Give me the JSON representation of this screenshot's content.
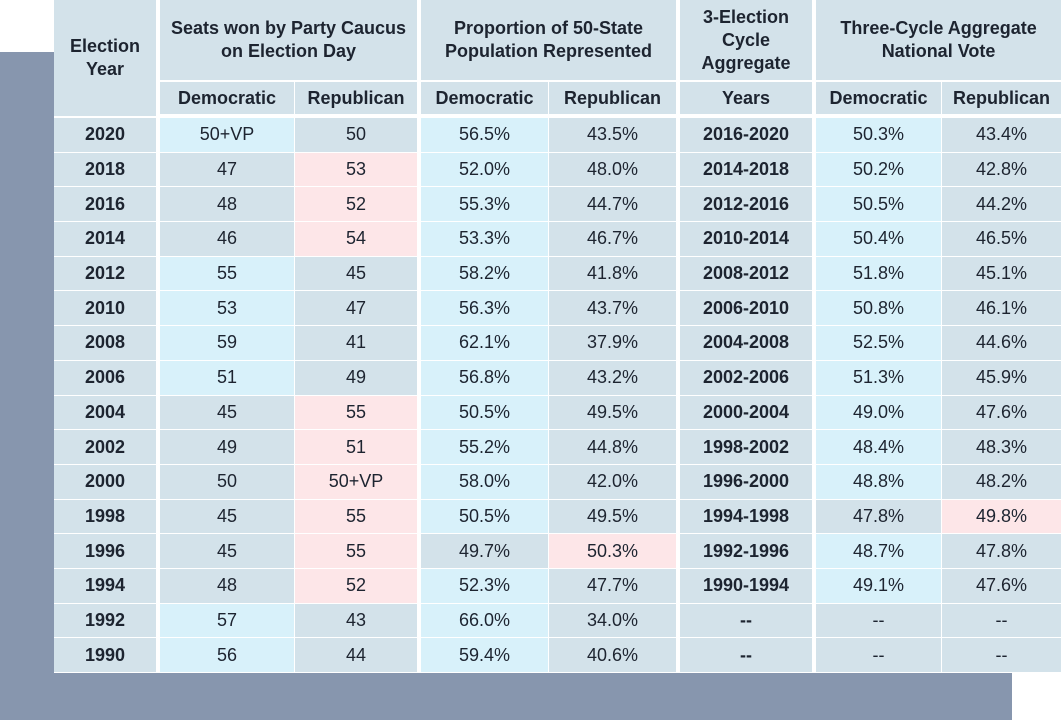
{
  "headers": {
    "year": "Election Year",
    "seats": "Seats won by Party Caucus on Election Day",
    "population": "Proportion of 50-State Population Represented",
    "cycle": "3-Election Cycle Aggregate",
    "national": "Three-Cycle Aggregate National Vote",
    "dem": "Democratic",
    "rep": "Republican",
    "years": "Years"
  },
  "colors": {
    "header_bg": "#d3e2ea",
    "dem_highlight": "#d8f1fa",
    "rep_highlight": "#fde6e8",
    "neutral": "#d3e2ea",
    "backdrop": "#8796ae"
  },
  "rows": [
    {
      "year": "2020",
      "seats_d": "50+VP",
      "seats_r": "50",
      "pop_d": "56.5%",
      "pop_r": "43.5%",
      "range": "2016-2020",
      "nat_d": "50.3%",
      "nat_r": "43.4%",
      "s": "d",
      "p": "d",
      "n": "d"
    },
    {
      "year": "2018",
      "seats_d": "47",
      "seats_r": "53",
      "pop_d": "52.0%",
      "pop_r": "48.0%",
      "range": "2014-2018",
      "nat_d": "50.2%",
      "nat_r": "42.8%",
      "s": "r",
      "p": "d",
      "n": "d"
    },
    {
      "year": "2016",
      "seats_d": "48",
      "seats_r": "52",
      "pop_d": "55.3%",
      "pop_r": "44.7%",
      "range": "2012-2016",
      "nat_d": "50.5%",
      "nat_r": "44.2%",
      "s": "r",
      "p": "d",
      "n": "d"
    },
    {
      "year": "2014",
      "seats_d": "46",
      "seats_r": "54",
      "pop_d": "53.3%",
      "pop_r": "46.7%",
      "range": "2010-2014",
      "nat_d": "50.4%",
      "nat_r": "46.5%",
      "s": "r",
      "p": "d",
      "n": "d"
    },
    {
      "year": "2012",
      "seats_d": "55",
      "seats_r": "45",
      "pop_d": "58.2%",
      "pop_r": "41.8%",
      "range": "2008-2012",
      "nat_d": "51.8%",
      "nat_r": "45.1%",
      "s": "d",
      "p": "d",
      "n": "d"
    },
    {
      "year": "2010",
      "seats_d": "53",
      "seats_r": "47",
      "pop_d": "56.3%",
      "pop_r": "43.7%",
      "range": "2006-2010",
      "nat_d": "50.8%",
      "nat_r": "46.1%",
      "s": "d",
      "p": "d",
      "n": "d"
    },
    {
      "year": "2008",
      "seats_d": "59",
      "seats_r": "41",
      "pop_d": "62.1%",
      "pop_r": "37.9%",
      "range": "2004-2008",
      "nat_d": "52.5%",
      "nat_r": "44.6%",
      "s": "d",
      "p": "d",
      "n": "d"
    },
    {
      "year": "2006",
      "seats_d": "51",
      "seats_r": "49",
      "pop_d": "56.8%",
      "pop_r": "43.2%",
      "range": "2002-2006",
      "nat_d": "51.3%",
      "nat_r": "45.9%",
      "s": "d",
      "p": "d",
      "n": "d"
    },
    {
      "year": "2004",
      "seats_d": "45",
      "seats_r": "55",
      "pop_d": "50.5%",
      "pop_r": "49.5%",
      "range": "2000-2004",
      "nat_d": "49.0%",
      "nat_r": "47.6%",
      "s": "r",
      "p": "d",
      "n": "d"
    },
    {
      "year": "2002",
      "seats_d": "49",
      "seats_r": "51",
      "pop_d": "55.2%",
      "pop_r": "44.8%",
      "range": "1998-2002",
      "nat_d": "48.4%",
      "nat_r": "48.3%",
      "s": "r",
      "p": "d",
      "n": "d"
    },
    {
      "year": "2000",
      "seats_d": "50",
      "seats_r": "50+VP",
      "pop_d": "58.0%",
      "pop_r": "42.0%",
      "range": "1996-2000",
      "nat_d": "48.8%",
      "nat_r": "48.2%",
      "s": "r",
      "p": "d",
      "n": "d"
    },
    {
      "year": "1998",
      "seats_d": "45",
      "seats_r": "55",
      "pop_d": "50.5%",
      "pop_r": "49.5%",
      "range": "1994-1998",
      "nat_d": "47.8%",
      "nat_r": "49.8%",
      "s": "r",
      "p": "d",
      "n": "r"
    },
    {
      "year": "1996",
      "seats_d": "45",
      "seats_r": "55",
      "pop_d": "49.7%",
      "pop_r": "50.3%",
      "range": "1992-1996",
      "nat_d": "48.7%",
      "nat_r": "47.8%",
      "s": "r",
      "p": "r",
      "n": "d"
    },
    {
      "year": "1994",
      "seats_d": "48",
      "seats_r": "52",
      "pop_d": "52.3%",
      "pop_r": "47.7%",
      "range": "1990-1994",
      "nat_d": "49.1%",
      "nat_r": "47.6%",
      "s": "r",
      "p": "d",
      "n": "d"
    },
    {
      "year": "1992",
      "seats_d": "57",
      "seats_r": "43",
      "pop_d": "66.0%",
      "pop_r": "34.0%",
      "range": "--",
      "nat_d": "--",
      "nat_r": "--",
      "s": "d",
      "p": "d",
      "n": "none"
    },
    {
      "year": "1990",
      "seats_d": "56",
      "seats_r": "44",
      "pop_d": "59.4%",
      "pop_r": "40.6%",
      "range": "--",
      "nat_d": "--",
      "nat_r": "--",
      "s": "d",
      "p": "d",
      "n": "none"
    }
  ]
}
